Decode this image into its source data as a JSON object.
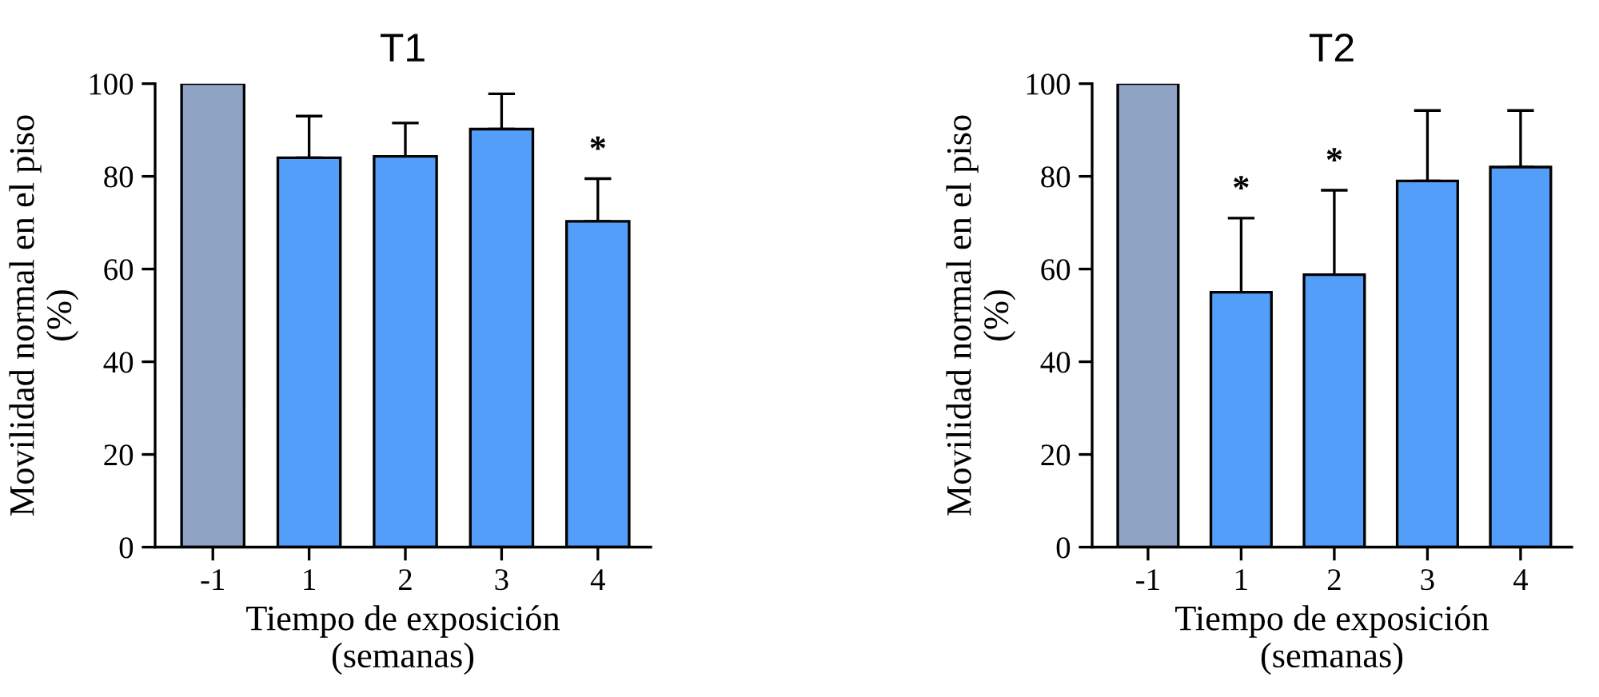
{
  "chart_data": [
    {
      "type": "bar",
      "title": "T1",
      "xlabel": "Tiempo de exposición\n(semanas)",
      "ylabel": "Movilidad normal en el piso\n(%)",
      "categories": [
        "-1",
        "1",
        "2",
        "3",
        "4"
      ],
      "values": [
        100,
        84,
        84.3,
        90.2,
        70.3
      ],
      "colors": [
        "#8fa3c4",
        "#529ef8",
        "#529ef8",
        "#529ef8",
        "#529ef8"
      ],
      "errors": [
        null,
        [
          84,
          93
        ],
        [
          84.3,
          91.5
        ],
        [
          90.2,
          97.8
        ],
        [
          70.3,
          79.5
        ]
      ],
      "ylim": [
        0,
        100
      ],
      "yticks": [
        0,
        20,
        40,
        60,
        80,
        100
      ],
      "grid": false,
      "annotations": [
        {
          "text": "*",
          "x": "4",
          "y": 79.5
        }
      ]
    },
    {
      "type": "bar",
      "title": "T2",
      "xlabel": "Tiempo de exposición\n(semanas)",
      "ylabel": "Movilidad normal en el piso\n(%)",
      "categories": [
        "-1",
        "1",
        "2",
        "3",
        "4"
      ],
      "values": [
        100,
        55,
        58.8,
        79,
        82
      ],
      "colors": [
        "#8fa3c4",
        "#529ef8",
        "#529ef8",
        "#529ef8",
        "#529ef8"
      ],
      "errors": [
        null,
        [
          55,
          71
        ],
        [
          58.8,
          77
        ],
        [
          79,
          94.2
        ],
        [
          82,
          94.2
        ]
      ],
      "ylim": [
        0,
        100
      ],
      "yticks": [
        0,
        20,
        40,
        60,
        80,
        100
      ],
      "grid": false,
      "annotations": [
        {
          "text": "*",
          "x": "1",
          "y": 71
        },
        {
          "text": "*",
          "x": "2",
          "y": 77
        }
      ]
    }
  ]
}
